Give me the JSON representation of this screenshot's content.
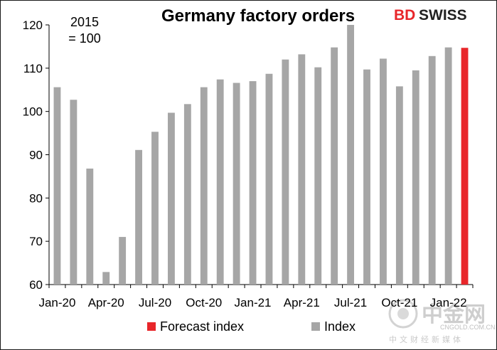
{
  "chart_data": {
    "type": "bar",
    "title": "Germany factory orders",
    "annotation": [
      "2015",
      "= 100"
    ],
    "ylim": [
      60,
      120
    ],
    "yticks": [
      60,
      70,
      80,
      90,
      100,
      110,
      120
    ],
    "xtick_labels": [
      "Jan-20",
      "Apr-20",
      "Jul-20",
      "Oct-20",
      "Jan-21",
      "Apr-21",
      "Jul-21",
      "Oct-21",
      "Jan-22"
    ],
    "categories": [
      "Jan-20",
      "Feb-20",
      "Mar-20",
      "Apr-20",
      "May-20",
      "Jun-20",
      "Jul-20",
      "Aug-20",
      "Sep-20",
      "Oct-20",
      "Nov-20",
      "Dec-20",
      "Jan-21",
      "Feb-21",
      "Mar-21",
      "Apr-21",
      "May-21",
      "Jun-21",
      "Jul-21",
      "Aug-21",
      "Sep-21",
      "Oct-21",
      "Nov-21",
      "Dec-21",
      "Jan-22",
      "Feb-22"
    ],
    "series": [
      {
        "name": "Index",
        "color": "#a6a6a6",
        "values": [
          105.6,
          102.7,
          86.8,
          62.9,
          71.0,
          91.1,
          95.3,
          99.7,
          101.7,
          105.6,
          107.4,
          106.6,
          107.0,
          108.7,
          112.0,
          113.2,
          110.2,
          114.8,
          120.0,
          109.7,
          112.2,
          105.8,
          109.5,
          112.8,
          114.8,
          null
        ]
      },
      {
        "name": "Forecast index",
        "color": "#e8262a",
        "values": [
          null,
          null,
          null,
          null,
          null,
          null,
          null,
          null,
          null,
          null,
          null,
          null,
          null,
          null,
          null,
          null,
          null,
          null,
          null,
          null,
          null,
          null,
          null,
          null,
          null,
          114.7
        ]
      }
    ],
    "grid": false,
    "legend_position": "bottom"
  },
  "logo": {
    "part1": "BD",
    "part2": "SWISS"
  },
  "watermark": {
    "main": "中金网",
    "url": "CNGOLD.COM.CN",
    "sub": "中文财经新媒体"
  }
}
